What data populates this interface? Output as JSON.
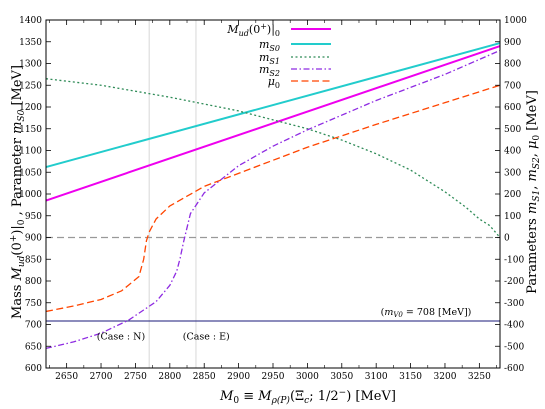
{
  "chart_data": {
    "type": "line",
    "x_label": "M₀ ≡ M_ρ(P)(Ξc; 1/2⁻) [MeV]",
    "y_left_label": "Mass M_ud(0⁺)|₀ , Parameter m_S0 [MeV]",
    "y_right_label": "Parameters m_S1, m_S2, μ₀ [MeV]",
    "x_range": [
      2620,
      3280
    ],
    "y_left_range": [
      600,
      1400
    ],
    "y_right_range": [
      -600,
      1000
    ],
    "x_ticks": [
      "2650",
      "2700",
      "2750",
      "2800",
      "2850",
      "2900",
      "2950",
      "3000",
      "3050",
      "3100",
      "3150",
      "3200",
      "3250"
    ],
    "y_left_ticks": [
      "600",
      "650",
      "700",
      "750",
      "800",
      "850",
      "900",
      "950",
      "1000",
      "1050",
      "1100",
      "1150",
      "1200",
      "1250",
      "1300",
      "1350",
      "1400"
    ],
    "y_right_ticks": [
      "-600",
      "-500",
      "-400",
      "-300",
      "-200",
      "-100",
      "0",
      "100",
      "200",
      "300",
      "400",
      "500",
      "600",
      "700",
      "800",
      "900",
      "1000"
    ],
    "series": [
      {
        "name": "M_ud(0⁺)|₀",
        "axis": "left",
        "color": "#ee00ee",
        "dash": "solid",
        "x": [
          2620,
          3280
        ],
        "y": [
          985,
          1340
        ]
      },
      {
        "name": "m_S0",
        "axis": "left",
        "color": "#22cccc",
        "dash": "solid",
        "x": [
          2620,
          3280
        ],
        "y": [
          1062,
          1347
        ]
      },
      {
        "name": "m_S1",
        "axis": "right",
        "color": "#2e8b57",
        "dash": "dotted",
        "x": [
          2620,
          2700,
          2800,
          2900,
          3000,
          3050,
          3100,
          3150,
          3200,
          3230,
          3250,
          3265,
          3280
        ],
        "y": [
          730,
          700,
          645,
          582,
          500,
          448,
          385,
          310,
          210,
          140,
          85,
          55,
          0
        ]
      },
      {
        "name": "m_S2",
        "axis": "right",
        "color": "#8e2be2",
        "dash": "dashdot",
        "x": [
          2620,
          2660,
          2700,
          2740,
          2780,
          2800,
          2810,
          2815,
          2820,
          2830,
          2850,
          2900,
          2950,
          3000,
          3100,
          3200,
          3280
        ],
        "y": [
          -510,
          -480,
          -440,
          -380,
          -295,
          -220,
          -155,
          -95,
          -20,
          110,
          205,
          330,
          420,
          495,
          630,
          750,
          860
        ]
      },
      {
        "name": "μ₀",
        "axis": "right",
        "color": "#ff4500",
        "dash": "dashed",
        "x": [
          2620,
          2660,
          2700,
          2730,
          2755,
          2762,
          2766,
          2770,
          2780,
          2800,
          2850,
          2900,
          3000,
          3100,
          3200,
          3280
        ],
        "y": [
          -340,
          -315,
          -285,
          -245,
          -180,
          -100,
          -15,
          25,
          85,
          145,
          235,
          295,
          415,
          520,
          620,
          700
        ]
      }
    ],
    "reference_lines": [
      {
        "axis": "left",
        "y": 900,
        "style": "dashed",
        "color": "#999999"
      },
      {
        "axis": "left",
        "y": 708,
        "style": "solid",
        "color": "#1a1a7a"
      }
    ],
    "vertical_guides": [
      2770,
      2838
    ],
    "annotations": {
      "mv0": "(m_V0 = 708 [MeV])",
      "case_n": "(Case : N)",
      "case_e": "(Case : E)"
    },
    "legend_position": "top-center"
  }
}
